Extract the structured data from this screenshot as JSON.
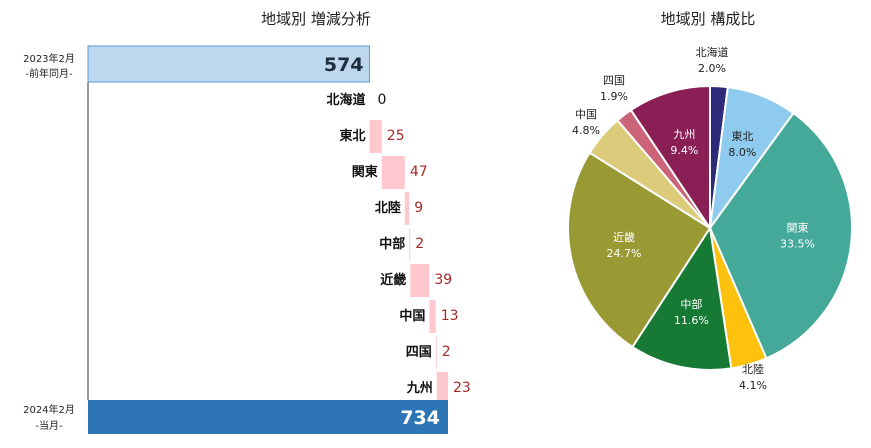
{
  "waterfall": {
    "title": "地域別 増減分析",
    "start_label_line1": "2023年2月",
    "start_label_line2": "-前年同月-",
    "end_label_line1": "2024年2月",
    "end_label_line2": "-当月-",
    "colors": {
      "start": "#bdd7ee",
      "start_border": "#5b9bd5",
      "increase": "#ffc7ce",
      "end": "#2e75b6",
      "line": "#333333"
    }
  },
  "pie": {
    "title": "地域別 構成比"
  },
  "chart_data": [
    {
      "type": "bar",
      "subtype": "waterfall",
      "title": "地域別 増減分析",
      "start": {
        "label": "2023年2月 -前年同月-",
        "value": 574
      },
      "end": {
        "label": "2024年2月 -当月-",
        "value": 734
      },
      "categories": [
        "北海道",
        "東北",
        "関東",
        "北陸",
        "中部",
        "近畿",
        "中国",
        "四国",
        "九州"
      ],
      "values": [
        0,
        25,
        47,
        9,
        2,
        39,
        13,
        2,
        23
      ]
    },
    {
      "type": "pie",
      "title": "地域別 構成比",
      "labels": [
        "北海道",
        "東北",
        "関東",
        "北陸",
        "中部",
        "近畿",
        "中国",
        "四国",
        "九州"
      ],
      "values": [
        2.0,
        8.0,
        33.5,
        4.1,
        11.6,
        24.7,
        4.8,
        1.9,
        9.4
      ],
      "value_labels": [
        "2.0%",
        "8.0%",
        "33.5%",
        "4.1%",
        "11.6%",
        "24.7%",
        "4.8%",
        "1.9%",
        "9.4%"
      ],
      "colors": [
        "#2e2a7a",
        "#8ecbee",
        "#45a99a",
        "#fec10e",
        "#167a34",
        "#9a9a34",
        "#dccb7a",
        "#cb6478",
        "#8a1f55"
      ]
    }
  ]
}
